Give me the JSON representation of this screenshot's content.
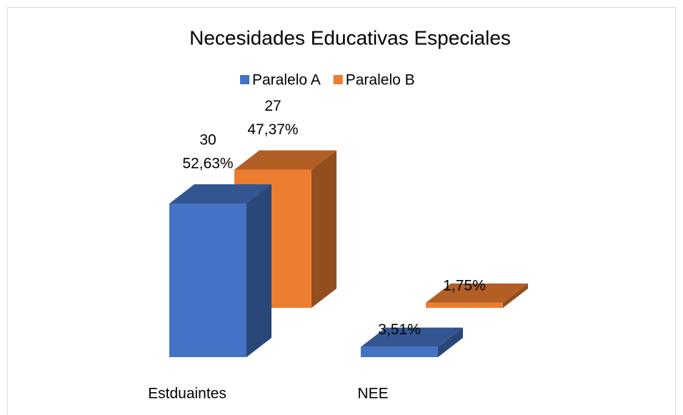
{
  "chart_data": {
    "type": "bar3d",
    "title": "Necesidades Educativas Especiales",
    "categories": [
      "Estduaintes",
      "NEE"
    ],
    "series": [
      {
        "name": "Paralelo A",
        "color": "#4472c4",
        "values": [
          30,
          2
        ],
        "value_labels": [
          "30",
          null
        ],
        "percents": [
          52.63,
          3.51
        ],
        "percent_labels": [
          "52,63%",
          "3,51%"
        ]
      },
      {
        "name": "Paralelo B",
        "color": "#ed7d31",
        "values": [
          27,
          1
        ],
        "value_labels": [
          "27",
          null
        ],
        "percents": [
          47.37,
          1.75
        ],
        "percent_labels": [
          "47,37%",
          "1,75%"
        ]
      }
    ],
    "ylim": [
      0,
      30
    ],
    "legend": "top"
  }
}
